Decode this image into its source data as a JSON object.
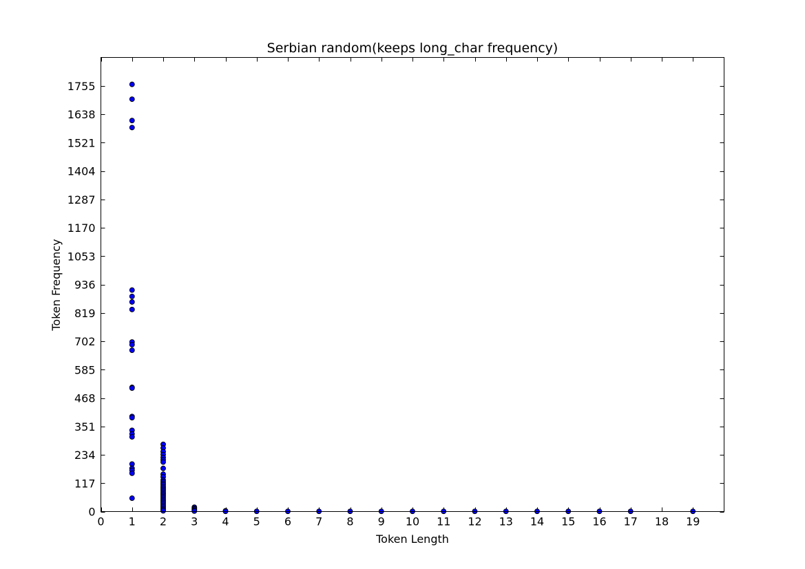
{
  "chart_data": {
    "type": "scatter",
    "title": "Serbian random(keeps long_char frequency)",
    "xlabel": "Token Length",
    "ylabel": "Token Frequency",
    "xlim": [
      0,
      20
    ],
    "ylim": [
      0,
      1872
    ],
    "xticks": [
      "0",
      "1",
      "2",
      "3",
      "4",
      "5",
      "6",
      "7",
      "8",
      "9",
      "10",
      "11",
      "12",
      "13",
      "14",
      "15",
      "16",
      "17",
      "18",
      "19"
    ],
    "yticks": [
      "0",
      "117",
      "234",
      "351",
      "468",
      "585",
      "702",
      "819",
      "936",
      "1053",
      "1170",
      "1287",
      "1404",
      "1521",
      "1638",
      "1755"
    ],
    "grid": false,
    "legend": "none",
    "marker_color": "#0000ff",
    "points": [
      {
        "x": 1,
        "y": 1761
      },
      {
        "x": 1,
        "y": 1700
      },
      {
        "x": 1,
        "y": 1612
      },
      {
        "x": 1,
        "y": 1583
      },
      {
        "x": 1,
        "y": 913
      },
      {
        "x": 1,
        "y": 887
      },
      {
        "x": 1,
        "y": 864
      },
      {
        "x": 1,
        "y": 833
      },
      {
        "x": 1,
        "y": 699
      },
      {
        "x": 1,
        "y": 688
      },
      {
        "x": 1,
        "y": 665
      },
      {
        "x": 1,
        "y": 512
      },
      {
        "x": 1,
        "y": 509
      },
      {
        "x": 1,
        "y": 392
      },
      {
        "x": 1,
        "y": 387
      },
      {
        "x": 1,
        "y": 335
      },
      {
        "x": 1,
        "y": 320
      },
      {
        "x": 1,
        "y": 308
      },
      {
        "x": 1,
        "y": 196
      },
      {
        "x": 1,
        "y": 178
      },
      {
        "x": 1,
        "y": 170
      },
      {
        "x": 1,
        "y": 158
      },
      {
        "x": 1,
        "y": 55
      },
      {
        "x": 2,
        "y": 277
      },
      {
        "x": 2,
        "y": 262
      },
      {
        "x": 2,
        "y": 247
      },
      {
        "x": 2,
        "y": 235
      },
      {
        "x": 2,
        "y": 223
      },
      {
        "x": 2,
        "y": 213
      },
      {
        "x": 2,
        "y": 204
      },
      {
        "x": 2,
        "y": 178
      },
      {
        "x": 2,
        "y": 154
      },
      {
        "x": 2,
        "y": 143
      },
      {
        "x": 2,
        "y": 130
      },
      {
        "x": 2,
        "y": 123
      },
      {
        "x": 2,
        "y": 116
      },
      {
        "x": 2,
        "y": 110
      },
      {
        "x": 2,
        "y": 103
      },
      {
        "x": 2,
        "y": 97
      },
      {
        "x": 2,
        "y": 91
      },
      {
        "x": 2,
        "y": 85
      },
      {
        "x": 2,
        "y": 79
      },
      {
        "x": 2,
        "y": 73
      },
      {
        "x": 2,
        "y": 67
      },
      {
        "x": 2,
        "y": 61
      },
      {
        "x": 2,
        "y": 55
      },
      {
        "x": 2,
        "y": 49
      },
      {
        "x": 2,
        "y": 43
      },
      {
        "x": 2,
        "y": 37
      },
      {
        "x": 2,
        "y": 31
      },
      {
        "x": 2,
        "y": 25
      },
      {
        "x": 2,
        "y": 19
      },
      {
        "x": 2,
        "y": 13
      },
      {
        "x": 2,
        "y": 8
      },
      {
        "x": 2,
        "y": 3
      },
      {
        "x": 3,
        "y": 18
      },
      {
        "x": 3,
        "y": 14
      },
      {
        "x": 3,
        "y": 10
      },
      {
        "x": 3,
        "y": 6
      },
      {
        "x": 3,
        "y": 2
      },
      {
        "x": 4,
        "y": 3
      },
      {
        "x": 4,
        "y": 1
      },
      {
        "x": 5,
        "y": 1
      },
      {
        "x": 6,
        "y": 1
      },
      {
        "x": 7,
        "y": 1
      },
      {
        "x": 8,
        "y": 1
      },
      {
        "x": 9,
        "y": 1
      },
      {
        "x": 10,
        "y": 1
      },
      {
        "x": 11,
        "y": 1
      },
      {
        "x": 12,
        "y": 1
      },
      {
        "x": 13,
        "y": 1
      },
      {
        "x": 14,
        "y": 1
      },
      {
        "x": 15,
        "y": 1
      },
      {
        "x": 16,
        "y": 1
      },
      {
        "x": 17,
        "y": 1
      },
      {
        "x": 19,
        "y": 1
      }
    ]
  }
}
